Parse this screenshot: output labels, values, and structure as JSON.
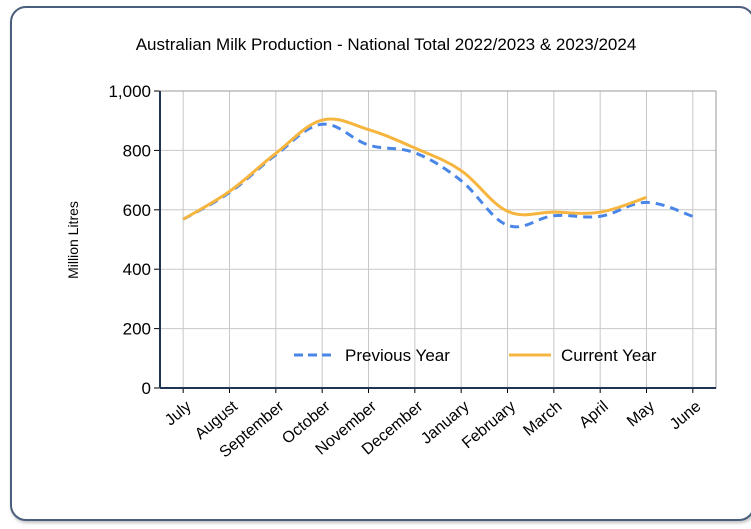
{
  "chart_data": {
    "type": "line",
    "title": "Australian Milk Production - National Total 2022/2023 & 2023/2024",
    "xlabel": "",
    "ylabel": "Million Litres",
    "categories": [
      "July",
      "August",
      "September",
      "October",
      "November",
      "December",
      "January",
      "February",
      "March",
      "April",
      "May",
      "June"
    ],
    "ylim": [
      0,
      1000
    ],
    "yticks": [
      0,
      200,
      400,
      600,
      800,
      1000
    ],
    "ytick_labels": [
      "0",
      "200",
      "400",
      "600",
      "800",
      "1,000"
    ],
    "grid": true,
    "legend_position": "bottom-right",
    "series": [
      {
        "name": "Previous Year",
        "style": "dashed",
        "color": "#4a86e8",
        "values": [
          568,
          658,
          785,
          888,
          818,
          792,
          698,
          548,
          580,
          578,
          625,
          578
        ]
      },
      {
        "name": "Current Year",
        "style": "solid",
        "color": "#f6b53f",
        "values": [
          568,
          662,
          790,
          902,
          870,
          808,
          732,
          595,
          592,
          592,
          642,
          null
        ]
      }
    ]
  }
}
